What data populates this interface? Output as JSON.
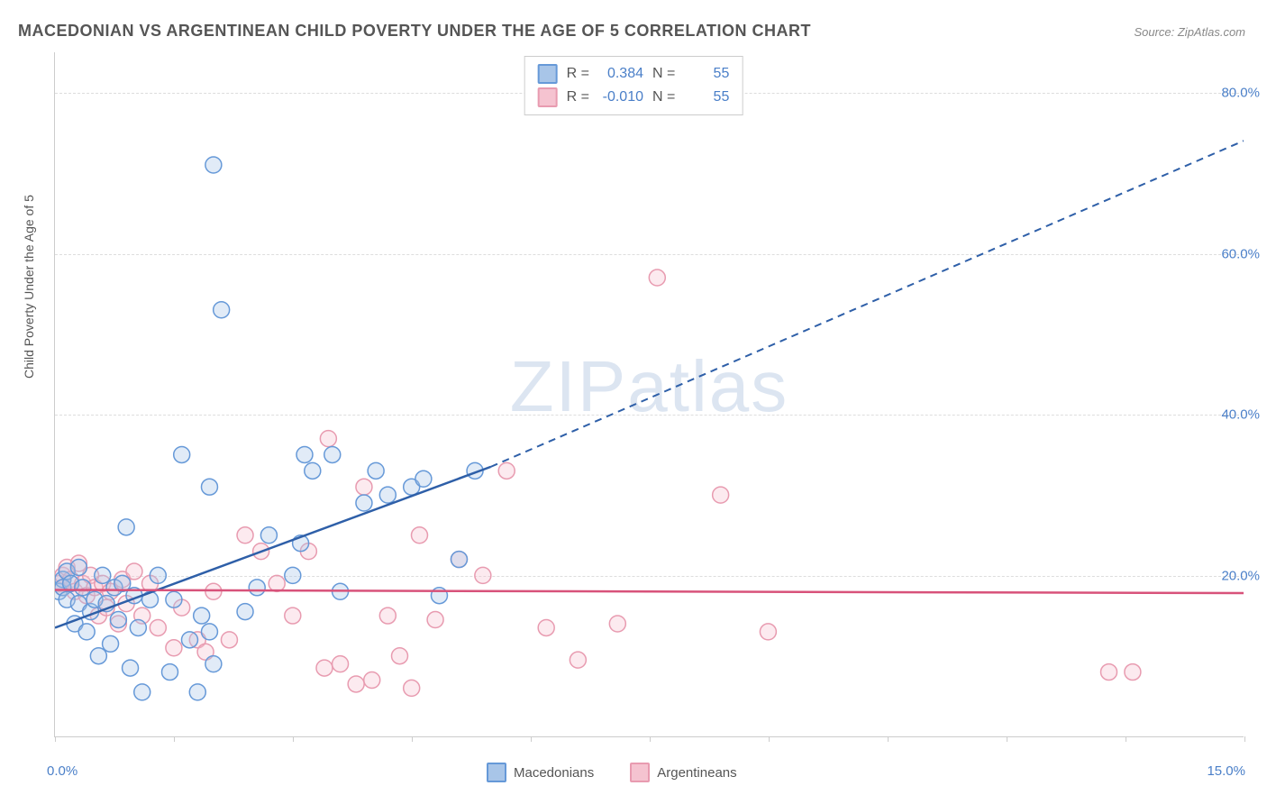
{
  "title": "MACEDONIAN VS ARGENTINEAN CHILD POVERTY UNDER THE AGE OF 5 CORRELATION CHART",
  "source": "Source: ZipAtlas.com",
  "ylabel": "Child Poverty Under the Age of 5",
  "watermark_prefix": "ZIP",
  "watermark_suffix": "atlas",
  "chart": {
    "type": "scatter",
    "xlim": [
      0,
      15
    ],
    "ylim": [
      0,
      85
    ],
    "yticks": [
      20,
      40,
      60,
      80
    ],
    "ytick_labels": [
      "20.0%",
      "40.0%",
      "60.0%",
      "80.0%"
    ],
    "xtick_start": "0.0%",
    "xtick_end": "15.0%",
    "xtick_marks": [
      0,
      1.5,
      3,
      4.5,
      6,
      7.5,
      9,
      10.5,
      12,
      13.5,
      15
    ],
    "background_color": "#ffffff",
    "grid_color": "#dddddd",
    "marker_radius": 9,
    "marker_stroke_width": 1.5,
    "marker_fill_opacity": 0.35,
    "series": [
      {
        "name": "Macedonians",
        "color": "#6699d8",
        "fill": "#a8c5e8",
        "r_value": "0.384",
        "n_value": "55",
        "trend": {
          "x1": 0,
          "y1": 13.5,
          "x2_solid": 5.5,
          "y2_solid": 33.5,
          "x2_dash": 15,
          "y2_dash": 74,
          "color": "#2e5fa8",
          "width": 2.5
        },
        "points": [
          [
            0.05,
            18
          ],
          [
            0.1,
            19.5
          ],
          [
            0.1,
            18.5
          ],
          [
            0.15,
            17
          ],
          [
            0.15,
            20.5
          ],
          [
            0.2,
            19
          ],
          [
            0.25,
            14
          ],
          [
            0.3,
            16.5
          ],
          [
            0.3,
            21
          ],
          [
            0.35,
            18.5
          ],
          [
            0.4,
            13
          ],
          [
            0.45,
            15.5
          ],
          [
            0.5,
            17
          ],
          [
            0.55,
            10
          ],
          [
            0.6,
            20
          ],
          [
            0.65,
            16.5
          ],
          [
            0.7,
            11.5
          ],
          [
            0.75,
            18.5
          ],
          [
            0.8,
            14.5
          ],
          [
            0.85,
            19
          ],
          [
            0.9,
            26
          ],
          [
            0.95,
            8.5
          ],
          [
            1.0,
            17.5
          ],
          [
            1.05,
            13.5
          ],
          [
            1.1,
            5.5
          ],
          [
            1.2,
            17
          ],
          [
            1.3,
            20
          ],
          [
            1.45,
            8
          ],
          [
            1.5,
            17
          ],
          [
            1.6,
            35
          ],
          [
            1.7,
            12
          ],
          [
            1.8,
            5.5
          ],
          [
            1.85,
            15
          ],
          [
            1.95,
            13
          ],
          [
            1.95,
            31
          ],
          [
            2.0,
            9
          ],
          [
            2.0,
            71
          ],
          [
            2.1,
            53
          ],
          [
            2.4,
            15.5
          ],
          [
            2.55,
            18.5
          ],
          [
            2.7,
            25
          ],
          [
            3.0,
            20
          ],
          [
            3.1,
            24
          ],
          [
            3.15,
            35
          ],
          [
            3.25,
            33
          ],
          [
            3.5,
            35
          ],
          [
            3.6,
            18
          ],
          [
            3.9,
            29
          ],
          [
            4.05,
            33
          ],
          [
            4.2,
            30
          ],
          [
            4.5,
            31
          ],
          [
            4.65,
            32
          ],
          [
            4.85,
            17.5
          ],
          [
            5.1,
            22
          ],
          [
            5.3,
            33
          ]
        ]
      },
      {
        "name": "Argentineans",
        "color": "#e89bb0",
        "fill": "#f5c3d0",
        "r_value": "-0.010",
        "n_value": "55",
        "trend": {
          "x1": 0,
          "y1": 18.2,
          "x2_solid": 15,
          "y2_solid": 17.8,
          "color": "#d8527a",
          "width": 2.5
        },
        "points": [
          [
            0.05,
            19
          ],
          [
            0.1,
            20
          ],
          [
            0.1,
            18.5
          ],
          [
            0.15,
            21
          ],
          [
            0.2,
            19.5
          ],
          [
            0.25,
            18
          ],
          [
            0.3,
            21.5
          ],
          [
            0.35,
            19
          ],
          [
            0.4,
            17.5
          ],
          [
            0.45,
            20
          ],
          [
            0.5,
            18.5
          ],
          [
            0.55,
            15
          ],
          [
            0.6,
            19
          ],
          [
            0.65,
            16
          ],
          [
            0.7,
            18
          ],
          [
            0.8,
            14
          ],
          [
            0.85,
            19.5
          ],
          [
            0.9,
            16.5
          ],
          [
            1.0,
            20.5
          ],
          [
            1.1,
            15
          ],
          [
            1.2,
            19
          ],
          [
            1.3,
            13.5
          ],
          [
            1.5,
            11
          ],
          [
            1.6,
            16
          ],
          [
            1.8,
            12
          ],
          [
            1.9,
            10.5
          ],
          [
            2.0,
            18
          ],
          [
            2.2,
            12
          ],
          [
            2.4,
            25
          ],
          [
            2.6,
            23
          ],
          [
            2.8,
            19
          ],
          [
            3.0,
            15
          ],
          [
            3.2,
            23
          ],
          [
            3.4,
            8.5
          ],
          [
            3.45,
            37
          ],
          [
            3.6,
            9
          ],
          [
            3.8,
            6.5
          ],
          [
            3.9,
            31
          ],
          [
            4.0,
            7
          ],
          [
            4.2,
            15
          ],
          [
            4.35,
            10
          ],
          [
            4.5,
            6
          ],
          [
            4.6,
            25
          ],
          [
            4.8,
            14.5
          ],
          [
            5.1,
            22
          ],
          [
            5.4,
            20
          ],
          [
            5.7,
            33
          ],
          [
            6.2,
            13.5
          ],
          [
            6.6,
            9.5
          ],
          [
            7.1,
            14
          ],
          [
            7.6,
            57
          ],
          [
            8.4,
            30
          ],
          [
            9.0,
            13
          ],
          [
            13.3,
            8
          ],
          [
            13.6,
            8
          ]
        ]
      }
    ]
  },
  "legend_labels": {
    "r_label": "R =",
    "n_label": "N ="
  }
}
